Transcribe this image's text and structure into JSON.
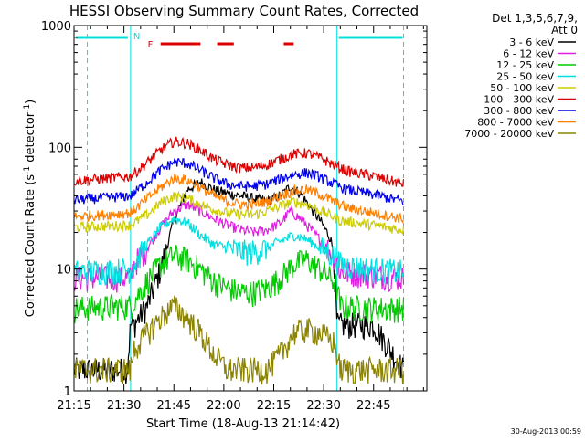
{
  "chart_data": {
    "type": "line",
    "title": "HESSI Observing Summary Count Rates, Corrected",
    "xlabel": "Start Time (18-Aug-13 21:14:42)",
    "ylabel_main": "Corrected Count Rate (s",
    "ylabel_sup": "-1",
    "ylabel_mid": " detector",
    "ylabel_end": ")",
    "y_scale": "log",
    "ylim": [
      1,
      1000
    ],
    "xlim_minutes": [
      0,
      106
    ],
    "x_ticks": [
      {
        "min": 0,
        "label": "21:15"
      },
      {
        "min": 15,
        "label": "21:30"
      },
      {
        "min": 30,
        "label": "21:45"
      },
      {
        "min": 45,
        "label": "22:00"
      },
      {
        "min": 60,
        "label": "22:15"
      },
      {
        "min": 75,
        "label": "22:30"
      },
      {
        "min": 90,
        "label": "22:45"
      }
    ],
    "y_ticks": [
      {
        "value": 1,
        "label": "1"
      },
      {
        "value": 10,
        "label": "10"
      },
      {
        "value": 100,
        "label": "100"
      },
      {
        "value": 1000,
        "label": "1000"
      }
    ],
    "legend_header": [
      "Det 1,3,5,6,7,9,",
      "Att 0"
    ],
    "legend_position": "right",
    "night_bounds": [
      17,
      79
    ],
    "night_inner": [
      4,
      99
    ],
    "night_bar_label": "N",
    "flare_bar_label": "F",
    "flare_intervals": [
      [
        26,
        38
      ],
      [
        43,
        48
      ],
      [
        63,
        66
      ]
    ],
    "footer": "30-Aug-2013 00:59",
    "series": [
      {
        "name": "3 - 6 keV",
        "color": "#000000",
        "x": [
          0,
          16,
          17,
          18,
          22,
          26,
          30,
          34,
          38,
          42,
          46,
          50,
          54,
          58,
          62,
          65,
          68,
          71,
          74,
          77,
          78,
          79,
          80,
          90,
          99
        ],
        "y": [
          1.5,
          1.5,
          3.5,
          3.5,
          5,
          10,
          25,
          45,
          52,
          45,
          42,
          40,
          38,
          36,
          40,
          48,
          42,
          32,
          25,
          18,
          14,
          3.5,
          3.5,
          3.5,
          1.5
        ]
      },
      {
        "name": "6 - 12 keV",
        "color": "#e020e0",
        "x": [
          0,
          17,
          18,
          22,
          26,
          30,
          34,
          38,
          42,
          46,
          50,
          54,
          58,
          62,
          65,
          68,
          72,
          76,
          79,
          80,
          90,
          99
        ],
        "y": [
          8.5,
          8.5,
          11,
          15,
          22,
          30,
          34,
          30,
          26,
          23,
          21,
          20,
          21,
          24,
          30,
          26,
          20,
          15,
          12,
          9.5,
          9,
          8.5
        ]
      },
      {
        "name": "12 - 25 keV",
        "color": "#00cc00",
        "x": [
          0,
          17,
          18,
          22,
          26,
          30,
          34,
          38,
          42,
          46,
          50,
          54,
          58,
          62,
          66,
          70,
          74,
          78,
          79,
          80,
          90,
          99
        ],
        "y": [
          4.8,
          5,
          5.5,
          8,
          11,
          13,
          12,
          10,
          8,
          7,
          6.5,
          6.5,
          7,
          8.5,
          11,
          12,
          10,
          8,
          7,
          5,
          4.8,
          4.8
        ]
      },
      {
        "name": "25 - 50 keV",
        "color": "#00e0e0",
        "x": [
          0,
          17,
          18,
          22,
          26,
          30,
          34,
          38,
          42,
          46,
          50,
          54,
          58,
          62,
          66,
          70,
          74,
          78,
          79,
          80,
          90,
          99
        ],
        "y": [
          9.5,
          10,
          11,
          16,
          22,
          26,
          24,
          19,
          16,
          15,
          14,
          14,
          15,
          17,
          19,
          17.5,
          15,
          13,
          12,
          11,
          10,
          9.5
        ]
      },
      {
        "name": "50 - 100 keV",
        "color": "#cccc00",
        "x": [
          0,
          17,
          22,
          26,
          30,
          34,
          38,
          42,
          46,
          50,
          54,
          58,
          62,
          66,
          70,
          74,
          78,
          80,
          90,
          99
        ],
        "y": [
          22,
          23,
          28,
          35,
          40,
          38,
          34,
          31,
          29,
          28,
          28,
          30,
          33,
          36,
          34,
          30,
          27,
          25,
          23,
          21
        ]
      },
      {
        "name": "100 - 300 keV",
        "color": "#dd0000",
        "x": [
          0,
          17,
          22,
          26,
          30,
          34,
          38,
          42,
          46,
          50,
          54,
          58,
          62,
          66,
          70,
          74,
          78,
          82,
          90,
          99
        ],
        "y": [
          53,
          58,
          75,
          95,
          112,
          108,
          95,
          80,
          72,
          68,
          68,
          72,
          80,
          88,
          90,
          82,
          72,
          64,
          58,
          50
        ]
      },
      {
        "name": "300 - 800 keV",
        "color": "#0000ee",
        "x": [
          0,
          17,
          22,
          26,
          30,
          34,
          38,
          42,
          46,
          50,
          54,
          58,
          62,
          66,
          70,
          74,
          78,
          82,
          90,
          99
        ],
        "y": [
          37,
          40,
          52,
          65,
          76,
          74,
          65,
          56,
          50,
          48,
          48,
          50,
          55,
          60,
          62,
          57,
          50,
          45,
          41,
          36
        ]
      },
      {
        "name": "800 - 7000 keV",
        "color": "#ff8000",
        "x": [
          0,
          17,
          22,
          26,
          30,
          34,
          38,
          42,
          46,
          50,
          54,
          58,
          62,
          66,
          70,
          74,
          78,
          82,
          90,
          99
        ],
        "y": [
          27,
          29,
          38,
          47,
          56,
          54,
          47,
          40,
          36,
          34,
          34,
          36,
          40,
          44,
          45,
          41,
          36,
          32,
          29,
          26
        ]
      },
      {
        "name": "7000 - 20000 keV",
        "color": "#8c8400",
        "x": [
          0,
          17,
          18,
          22,
          26,
          30,
          34,
          38,
          42,
          46,
          50,
          54,
          58,
          62,
          66,
          70,
          74,
          78,
          79,
          80,
          90,
          99
        ],
        "y": [
          1.5,
          1.5,
          2.2,
          3,
          4,
          5,
          4,
          3,
          2,
          1.5,
          1.5,
          1.5,
          1.5,
          2,
          3,
          3.2,
          3,
          2.5,
          2,
          1.5,
          1.5,
          1.5
        ]
      }
    ]
  }
}
